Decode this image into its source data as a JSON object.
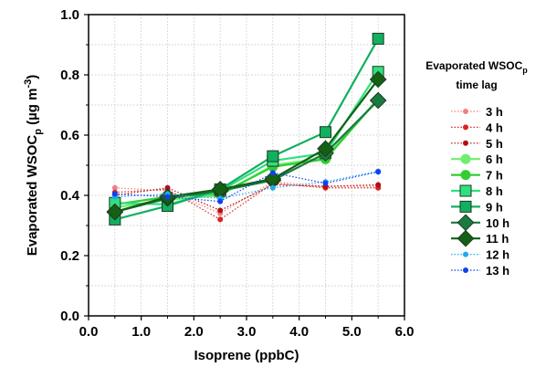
{
  "chart_data": {
    "type": "line",
    "xlabel": "Isoprene (ppbC)",
    "ylabel_parts": {
      "main": "Evaporated WSOC",
      "sub": "p",
      "units": " (µg m",
      "sup": "-3",
      "close": ")"
    },
    "xlim": [
      0,
      6
    ],
    "ylim": [
      0,
      1
    ],
    "xticks": [
      "0.0",
      "1.0",
      "2.0",
      "3.0",
      "4.0",
      "5.0",
      "6.0"
    ],
    "yticks": [
      "0.0",
      "0.2",
      "0.4",
      "0.6",
      "0.8",
      "1.0"
    ],
    "grid": true,
    "legend": {
      "title_line1_main": "Evaporated WSOC",
      "title_line1_sub": "p",
      "title_line2": "time lag",
      "placement": "right"
    },
    "x": [
      0.5,
      1.5,
      2.5,
      3.5,
      4.5,
      5.5
    ],
    "series": [
      {
        "name": "3 h",
        "values": [
          0.425,
          0.415,
          0.34,
          0.445,
          0.43,
          0.43
        ],
        "color": "#f08080",
        "marker": "circle",
        "style": "dotted"
      },
      {
        "name": "4 h",
        "values": [
          0.41,
          0.42,
          0.32,
          0.44,
          0.425,
          0.425
        ],
        "color": "#e02020",
        "marker": "circle",
        "style": "dotted"
      },
      {
        "name": "5 h",
        "values": [
          0.4,
          0.425,
          0.35,
          0.435,
          0.43,
          0.435
        ],
        "color": "#b01010",
        "marker": "circle",
        "style": "dotted"
      },
      {
        "name": "6 h",
        "values": [
          0.36,
          0.385,
          0.4,
          0.5,
          0.525,
          0.72
        ],
        "color": "#6ef06e",
        "marker": "circle",
        "style": "solid"
      },
      {
        "name": "7 h",
        "values": [
          0.37,
          0.395,
          0.405,
          0.495,
          0.52,
          0.72
        ],
        "color": "#33cc33",
        "marker": "circle",
        "style": "solid"
      },
      {
        "name": "8 h",
        "values": [
          0.375,
          0.37,
          0.415,
          0.515,
          0.54,
          0.81
        ],
        "color": "#30e080",
        "marker": "square",
        "style": "solid"
      },
      {
        "name": "9 h",
        "values": [
          0.32,
          0.365,
          0.42,
          0.53,
          0.61,
          0.92
        ],
        "color": "#10b060",
        "marker": "square",
        "style": "solid"
      },
      {
        "name": "10 h",
        "values": [
          0.345,
          0.39,
          0.415,
          0.45,
          0.54,
          0.715
        ],
        "color": "#1a7a40",
        "marker": "diamond",
        "style": "solid"
      },
      {
        "name": "11 h",
        "values": [
          0.345,
          0.395,
          0.42,
          0.455,
          0.555,
          0.785
        ],
        "color": "#146014",
        "marker": "diamond",
        "style": "solid"
      },
      {
        "name": "12 h",
        "values": [
          0.395,
          0.405,
          0.39,
          0.425,
          0.445,
          0.48
        ],
        "color": "#22a8f0",
        "marker": "circle",
        "style": "dotted"
      },
      {
        "name": "13 h",
        "values": [
          0.405,
          0.395,
          0.38,
          0.475,
          0.44,
          0.478
        ],
        "color": "#1040f0",
        "marker": "circle",
        "style": "dotted"
      }
    ]
  }
}
